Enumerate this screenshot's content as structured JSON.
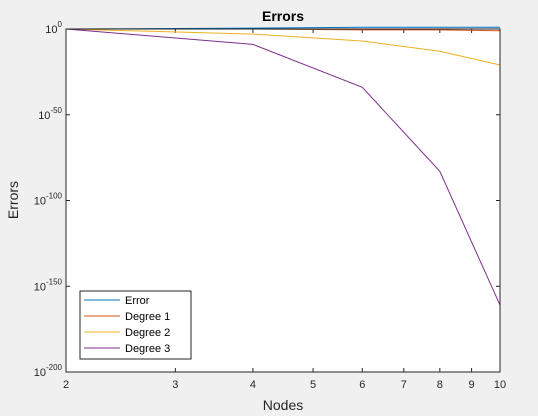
{
  "chart_data": {
    "type": "line",
    "title": "Errors",
    "xlabel": "Nodes",
    "ylabel": "Errors",
    "xscale": "log",
    "yscale": "log",
    "xlim": [
      2,
      10
    ],
    "ylim_exponent": [
      -200,
      0
    ],
    "x_ticks": [
      {
        "value": 2,
        "label": "2"
      },
      {
        "value": 3,
        "label": "3"
      },
      {
        "value": 4,
        "label": "4"
      },
      {
        "value": 5,
        "label": "5"
      },
      {
        "value": 6,
        "label": "6"
      },
      {
        "value": 7,
        "label": "7"
      },
      {
        "value": 8,
        "label": "8"
      },
      {
        "value": 9,
        "label": "9"
      },
      {
        "value": 10,
        "label": "10"
      }
    ],
    "y_ticks": [
      {
        "exponent": 0,
        "base": "10",
        "sup": "0"
      },
      {
        "exponent": -50,
        "base": "10",
        "sup": "-50"
      },
      {
        "exponent": -100,
        "base": "10",
        "sup": "-100"
      },
      {
        "exponent": -150,
        "base": "10",
        "sup": "-150"
      },
      {
        "exponent": -200,
        "base": "10",
        "sup": "-200"
      }
    ],
    "series": [
      {
        "name": "Error",
        "color": "#0072BD",
        "x": [
          2,
          4,
          6,
          8,
          10
        ],
        "y_exponent": [
          0,
          0.5,
          1,
          1,
          1
        ]
      },
      {
        "name": "Degree 1",
        "color": "#D95319",
        "x": [
          2,
          4,
          6,
          8,
          10
        ],
        "y_exponent": [
          0,
          0,
          -0.5,
          -0.5,
          -1
        ]
      },
      {
        "name": "Degree 2",
        "color": "#EDB120",
        "x": [
          2,
          4,
          6,
          8,
          10
        ],
        "y_exponent": [
          0,
          -3,
          -7,
          -13,
          -21
        ]
      },
      {
        "name": "Degree 3",
        "color": "#7E2F8E",
        "x": [
          2,
          4,
          6,
          8,
          10
        ],
        "y_exponent": [
          0,
          -9,
          -34,
          -83,
          -161
        ]
      }
    ],
    "legend_position": "bottom-left",
    "grid": false
  }
}
